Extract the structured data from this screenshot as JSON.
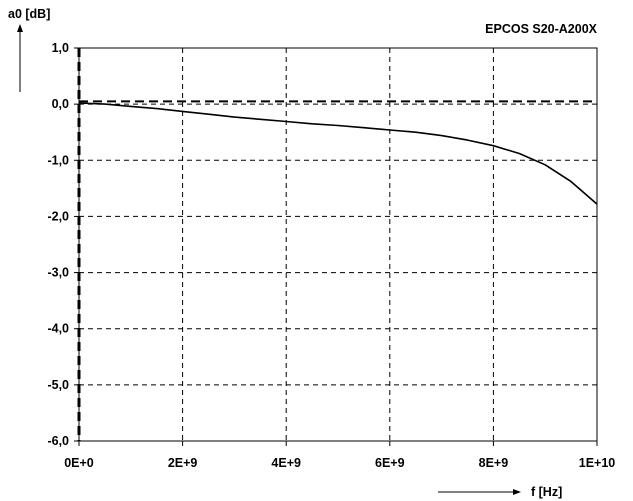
{
  "chart_data": {
    "type": "line",
    "title": "EPCOS S20-A200X",
    "ylabel": "a0 [dB]",
    "xlabel": "f [Hz]",
    "xlim": [
      0,
      10000000000
    ],
    "ylim": [
      -6.0,
      1.0
    ],
    "x_tick_labels": [
      "0E+0",
      "2E+9",
      "4E+9",
      "6E+9",
      "8E+9",
      "1E+10"
    ],
    "y_tick_labels": [
      "1,0",
      "0,0",
      "-1,0",
      "-2,0",
      "-3,0",
      "-4,0",
      "-5,0",
      "-6,0"
    ],
    "grid": true,
    "reference_line": {
      "y": 0.05,
      "style": "dashed"
    },
    "series": [
      {
        "x": [
          0,
          500000000,
          1000000000,
          1500000000,
          2000000000,
          2500000000,
          3000000000,
          3500000000,
          4000000000,
          4500000000,
          5000000000,
          5500000000,
          6000000000,
          6500000000,
          7000000000,
          7500000000,
          8000000000,
          8500000000,
          9000000000,
          9500000000,
          10000000000
        ],
        "y": [
          0.02,
          0.0,
          -0.04,
          -0.08,
          -0.13,
          -0.18,
          -0.23,
          -0.27,
          -0.31,
          -0.35,
          -0.38,
          -0.42,
          -0.46,
          -0.5,
          -0.56,
          -0.64,
          -0.74,
          -0.88,
          -1.08,
          -1.38,
          -1.78
        ]
      }
    ]
  }
}
